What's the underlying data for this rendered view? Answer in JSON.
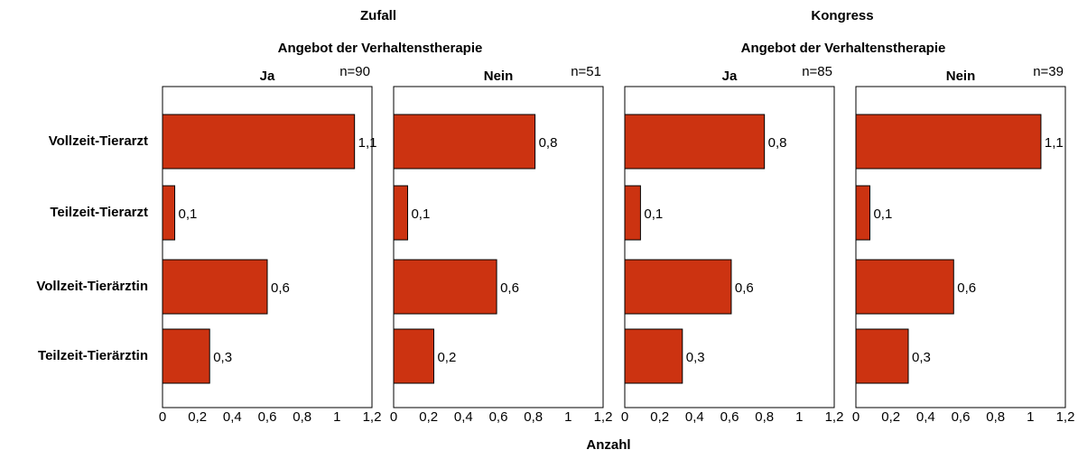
{
  "groups": [
    {
      "title": "Zufall",
      "subtitle": "Angebot der Verhaltenstherapie"
    },
    {
      "title": "Kongress",
      "subtitle": "Angebot der Verhaltenstherapie"
    }
  ],
  "categories": [
    "Vollzeit-Tierarzt",
    "Teilzeit-Tierarzt",
    "Vollzeit-Tierärztin",
    "Teilzeit-Tierärztin"
  ],
  "xlabel": "Anzahl",
  "chart_data": [
    {
      "type": "bar",
      "orientation": "horizontal",
      "title": "Ja",
      "note": "n=90",
      "color": "#cc3311",
      "values": [
        1.1,
        0.07,
        0.6,
        0.27
      ],
      "value_labels": [
        "1,1",
        "0,1",
        "0,6",
        "0,3"
      ],
      "xlim": [
        0,
        1.2
      ],
      "xticks": [
        0,
        {
          "value": 0.2,
          "label": "0,2"
        },
        {
          "value": 0.4,
          "label": "0,4"
        },
        {
          "value": 0.6,
          "label": "0,6"
        },
        {
          "value": 0.8,
          "label": "0,8"
        },
        1,
        {
          "value": 1.2,
          "label": "1,2"
        }
      ]
    },
    {
      "type": "bar",
      "orientation": "horizontal",
      "title": "Nein",
      "note": "n=51",
      "color": "#cc3311",
      "values": [
        0.81,
        0.08,
        0.59,
        0.23
      ],
      "value_labels": [
        "0,8",
        "0,1",
        "0,6",
        "0,2"
      ],
      "xlim": [
        0,
        1.2
      ],
      "xticks": [
        0,
        {
          "value": 0.2,
          "label": "0,2"
        },
        {
          "value": 0.4,
          "label": "0,4"
        },
        {
          "value": 0.6,
          "label": "0,6"
        },
        {
          "value": 0.8,
          "label": "0,8"
        },
        1,
        {
          "value": 1.2,
          "label": "1,2"
        }
      ]
    },
    {
      "type": "bar",
      "orientation": "horizontal",
      "title": "Ja",
      "note": "n=85",
      "color": "#cc3311",
      "values": [
        0.8,
        0.09,
        0.61,
        0.33
      ],
      "value_labels": [
        "0,8",
        "0,1",
        "0,6",
        "0,3"
      ],
      "xlim": [
        0,
        1.2
      ],
      "xticks": [
        0,
        {
          "value": 0.2,
          "label": "0,2"
        },
        {
          "value": 0.4,
          "label": "0,4"
        },
        {
          "value": 0.6,
          "label": "0,6"
        },
        {
          "value": 0.8,
          "label": "0,8"
        },
        1,
        {
          "value": 1.2,
          "label": "1,2"
        }
      ]
    },
    {
      "type": "bar",
      "orientation": "horizontal",
      "title": "Nein",
      "note": "n=39",
      "color": "#cc3311",
      "values": [
        1.06,
        0.08,
        0.56,
        0.3
      ],
      "value_labels": [
        "1,1",
        "0,1",
        "0,6",
        "0,3"
      ],
      "xlim": [
        0,
        1.2
      ],
      "xticks": [
        0,
        {
          "value": 0.2,
          "label": "0,2"
        },
        {
          "value": 0.4,
          "label": "0,4"
        },
        {
          "value": 0.6,
          "label": "0,6"
        },
        {
          "value": 0.8,
          "label": "0,8"
        },
        1,
        {
          "value": 1.2,
          "label": "1,2"
        }
      ]
    }
  ]
}
